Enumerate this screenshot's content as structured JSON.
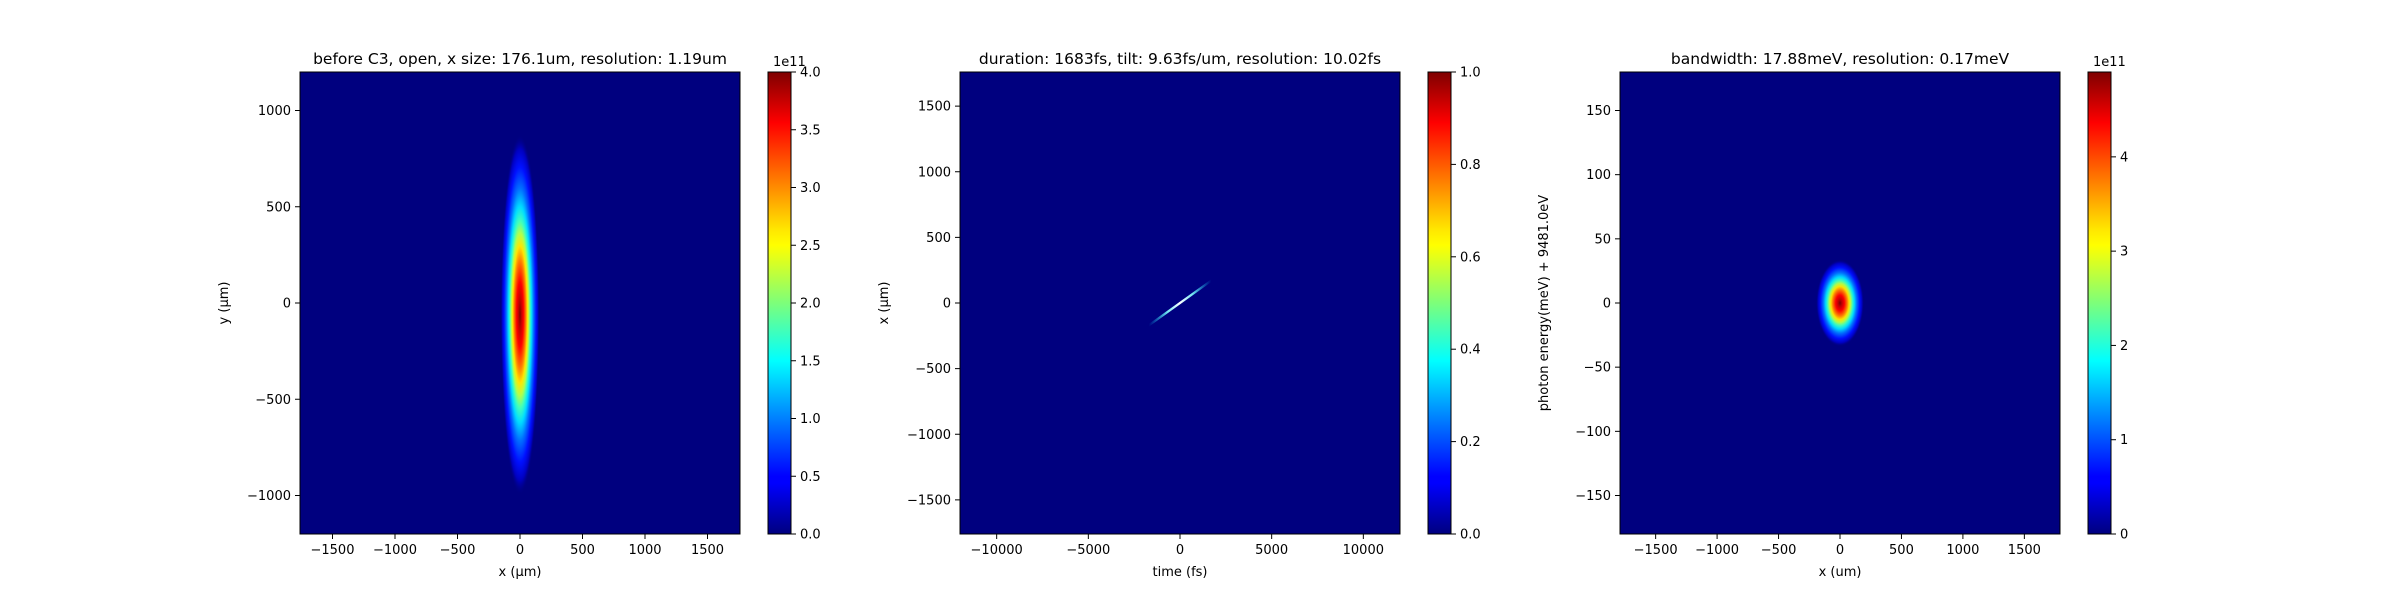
{
  "chart_data": [
    {
      "type": "heatmap",
      "title": "before C3, open, x size: 176.1um, resolution: 1.19um",
      "xlabel": "x (μm)",
      "ylabel": "y (μm)",
      "xlim": [
        -1760,
        1760
      ],
      "ylim": [
        -1200,
        1200
      ],
      "xticks": [
        -1500,
        -1000,
        -500,
        0,
        500,
        1000,
        1500
      ],
      "xtick_labels": [
        "−1500",
        "−1000",
        "−500",
        "0",
        "500",
        "1000",
        "1500"
      ],
      "yticks": [
        -1000,
        -500,
        0,
        500,
        1000
      ],
      "ytick_labels": [
        "−1000",
        "−500",
        "0",
        "500",
        "1000"
      ],
      "blob": {
        "shape": "gaussian",
        "cx": 0,
        "cy": -60,
        "sx": 60,
        "sy": 360,
        "peak": 1.0
      },
      "colormap": "jet",
      "colorbar": {
        "min": 0,
        "max": 4.0,
        "exponent_label": "1e11",
        "ticks": [
          0,
          0.5,
          1.0,
          1.5,
          2.0,
          2.5,
          3.0,
          3.5,
          4.0
        ],
        "tick_labels": [
          "0.0",
          "0.5",
          "1.0",
          "1.5",
          "2.0",
          "2.5",
          "3.0",
          "3.5",
          "4.0"
        ]
      }
    },
    {
      "type": "heatmap",
      "title": "duration: 1683fs, tilt: 9.63fs/um, resolution: 10.02fs",
      "xlabel": "time (fs)",
      "ylabel": "x (μm)",
      "xlim": [
        -12000,
        12000
      ],
      "ylim": [
        -1760,
        1760
      ],
      "xticks": [
        -10000,
        -5000,
        0,
        5000,
        10000
      ],
      "xtick_labels": [
        "−10000",
        "−5000",
        "0",
        "5000",
        "10000"
      ],
      "yticks": [
        -1500,
        -1000,
        -500,
        0,
        500,
        1000,
        1500
      ],
      "ytick_labels": [
        "−1500",
        "−1000",
        "−500",
        "0",
        "500",
        "1000",
        "1500"
      ],
      "streak": {
        "x_start": -1700,
        "y_start": -170,
        "x_end": 1700,
        "y_end": 170,
        "tilt_fs_per_um": 9.63
      },
      "colormap": "jet",
      "colorbar": {
        "min": 0,
        "max": 1.0,
        "exponent_label": "",
        "ticks": [
          0,
          0.2,
          0.4,
          0.6,
          0.8,
          1.0
        ],
        "tick_labels": [
          "0.0",
          "0.2",
          "0.4",
          "0.6",
          "0.8",
          "1.0"
        ]
      }
    },
    {
      "type": "heatmap",
      "title": "bandwidth: 17.88meV, resolution: 0.17meV",
      "xlabel": "x (um)",
      "ylabel": "photon energy(meV) + 9481.0eV",
      "xlim": [
        -1790,
        1790
      ],
      "ylim": [
        -180,
        180
      ],
      "xticks": [
        -1500,
        -1000,
        -500,
        0,
        500,
        1000,
        1500
      ],
      "xtick_labels": [
        "−1500",
        "−1000",
        "−500",
        "0",
        "500",
        "1000",
        "1500"
      ],
      "yticks": [
        -150,
        -100,
        -50,
        0,
        50,
        100,
        150
      ],
      "ytick_labels": [
        "−150",
        "−100",
        "−50",
        "0",
        "50",
        "100",
        "150"
      ],
      "blob": {
        "shape": "gaussian",
        "cx": 0,
        "cy": 0,
        "sx": 75,
        "sy": 13,
        "peak": 0.985
      },
      "colormap": "jet",
      "colorbar": {
        "min": 0,
        "max": 4.9,
        "exponent_label": "1e11",
        "ticks": [
          0,
          1,
          2,
          3,
          4
        ],
        "tick_labels": [
          "0",
          "1",
          "2",
          "3",
          "4"
        ]
      }
    }
  ]
}
